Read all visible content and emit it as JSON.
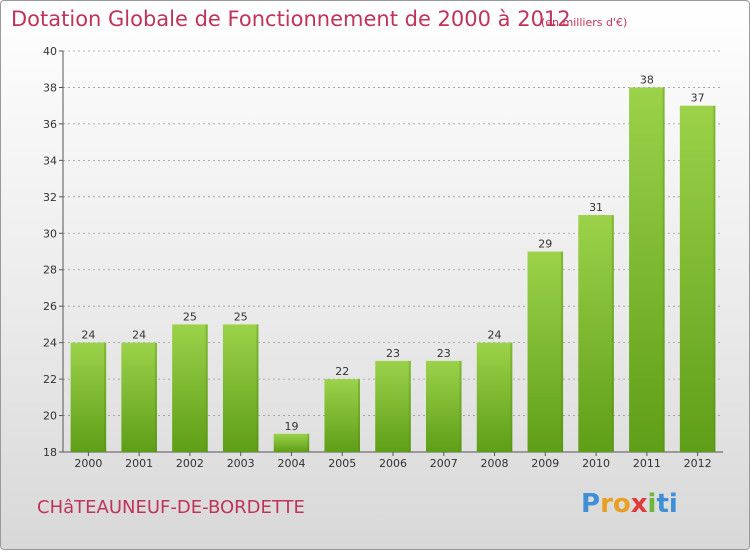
{
  "header": {
    "title": "Dotation Globale de Fonctionnement de 2000 à 2012",
    "subtitle": "(en milliers d'€)"
  },
  "footer": {
    "town": "CHâTEAUNEUF-DE-BORDETTE",
    "logo_letters": [
      "P",
      "r",
      "o",
      "x",
      "i",
      "ti"
    ]
  },
  "colors": {
    "title": "#c0345a",
    "bar_top": "#9bd24a",
    "bar_bottom": "#5f9e18",
    "grid": "#9a9a9a"
  },
  "chart_data": {
    "type": "bar",
    "title": "Dotation Globale de Fonctionnement de 2000 à 2012",
    "subtitle": "(en milliers d'€)",
    "categories": [
      "2000",
      "2001",
      "2002",
      "2003",
      "2004",
      "2005",
      "2006",
      "2007",
      "2008",
      "2009",
      "2010",
      "2011",
      "2012"
    ],
    "values": [
      24,
      24,
      25,
      25,
      19,
      22,
      23,
      23,
      24,
      29,
      31,
      38,
      37
    ],
    "ylim": [
      18,
      40
    ],
    "yticks": [
      18,
      20,
      22,
      24,
      26,
      28,
      30,
      32,
      34,
      36,
      38,
      40
    ],
    "xlabel": "",
    "ylabel": "",
    "grid": true,
    "data_labels": true
  }
}
